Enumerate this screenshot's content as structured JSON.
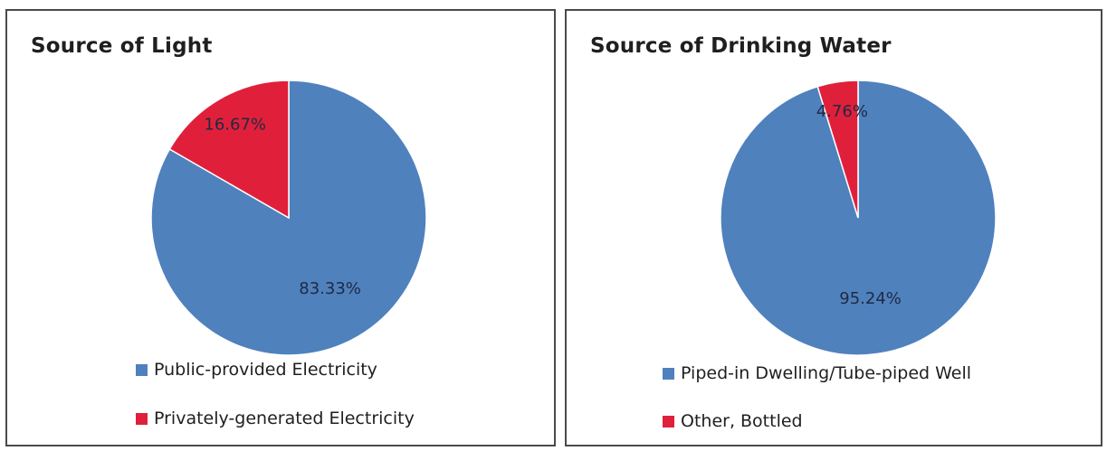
{
  "colors": {
    "blue": "#4f81bd",
    "red": "#e0203a"
  },
  "chart_data": [
    {
      "type": "pie",
      "title": "Source of Light",
      "slices": [
        {
          "label": "Public-provided Electricity",
          "value": 83.33,
          "display": "83.33%",
          "color": "#4f81bd"
        },
        {
          "label": "Privately-generated Electricity",
          "value": 16.67,
          "display": "16.67%",
          "color": "#e0203a"
        }
      ],
      "legend_position": "bottom"
    },
    {
      "type": "pie",
      "title": "Source of Drinking Water",
      "slices": [
        {
          "label": "Piped-in Dwelling/Tube-piped Well",
          "value": 95.24,
          "display": "95.24%",
          "color": "#4f81bd"
        },
        {
          "label": "Other, Bottled",
          "value": 4.76,
          "display": "4.76%",
          "color": "#e0203a"
        }
      ],
      "legend_position": "bottom"
    }
  ]
}
